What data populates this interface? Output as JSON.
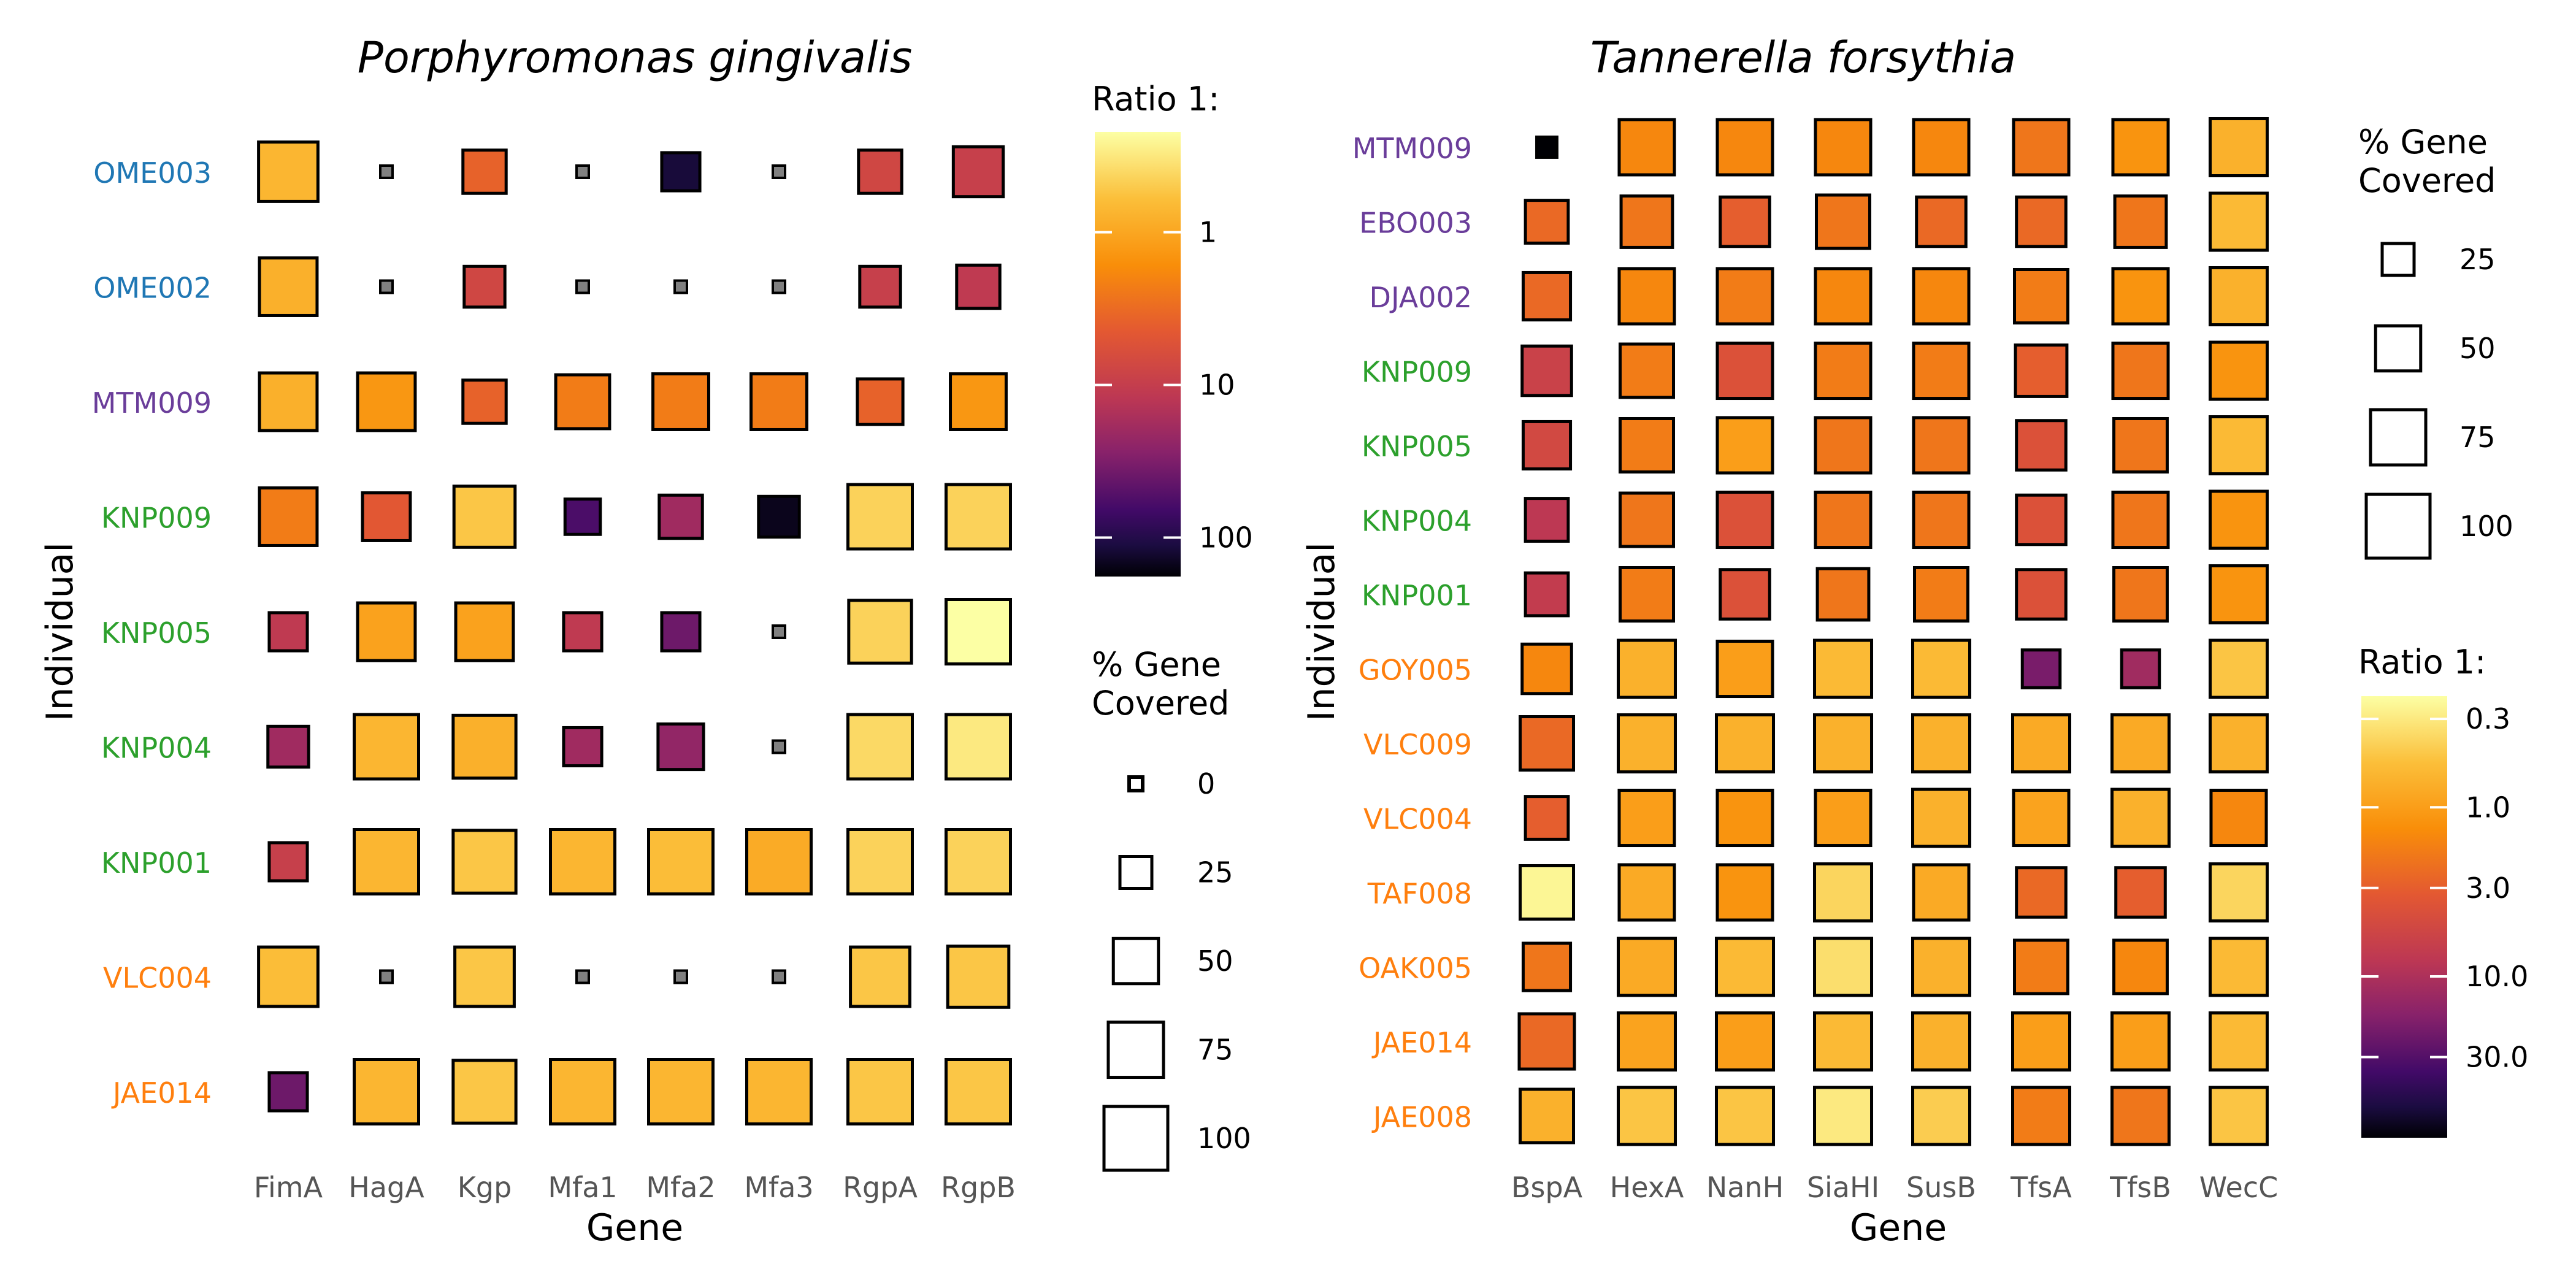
{
  "chart_data": [
    {
      "type": "heatmap",
      "title": "Porphyromonas gingivalis",
      "xlabel": "Gene",
      "ylabel": "Individual",
      "genes": [
        "FimA",
        "HagA",
        "Kgp",
        "Mfa1",
        "Mfa2",
        "Mfa3",
        "RgpA",
        "RgpB"
      ],
      "individuals": [
        "OME003",
        "OME002",
        "MTM009",
        "KNP009",
        "KNP005",
        "KNP004",
        "KNP001",
        "VLC004",
        "JAE014"
      ],
      "individual_colors": [
        "#1f77b4",
        "#1f77b4",
        "#6a3d9a",
        "#2ca02c",
        "#2ca02c",
        "#2ca02c",
        "#2ca02c",
        "#ff7f0e",
        "#ff7f0e"
      ],
      "ratio": [
        [
          0.8,
          null,
          4,
          null,
          120,
          null,
          8,
          10
        ],
        [
          0.9,
          null,
          8,
          null,
          null,
          null,
          10,
          12
        ],
        [
          0.9,
          1.5,
          4,
          2.5,
          2.5,
          2.5,
          4,
          1.5
        ],
        [
          2.5,
          5,
          0.6,
          60,
          20,
          150,
          0.5,
          0.5
        ],
        [
          12,
          1.2,
          1.2,
          12,
          40,
          null,
          0.5,
          0.25
        ],
        [
          20,
          0.8,
          0.9,
          20,
          25,
          null,
          0.45,
          0.35
        ],
        [
          10,
          0.8,
          0.6,
          0.8,
          0.7,
          1.0,
          0.5,
          0.5
        ],
        [
          0.7,
          null,
          0.6,
          null,
          null,
          null,
          0.6,
          0.6
        ],
        [
          40,
          0.8,
          0.6,
          0.8,
          0.8,
          0.8,
          0.6,
          0.6
        ]
      ],
      "coverage": [
        [
          85,
          0,
          45,
          0,
          35,
          0,
          45,
          60
        ],
        [
          80,
          0,
          40,
          0,
          0,
          0,
          40,
          45
        ],
        [
          80,
          80,
          45,
          70,
          75,
          75,
          50,
          75
        ],
        [
          80,
          55,
          90,
          30,
          45,
          40,
          100,
          100
        ],
        [
          35,
          80,
          80,
          35,
          35,
          0,
          95,
          100
        ],
        [
          40,
          100,
          95,
          35,
          50,
          0,
          100,
          100
        ],
        [
          35,
          100,
          95,
          100,
          100,
          100,
          100,
          100
        ],
        [
          85,
          0,
          85,
          0,
          0,
          0,
          85,
          90
        ],
        [
          35,
          100,
          95,
          100,
          100,
          100,
          100,
          100
        ]
      ],
      "color_legend": {
        "title": "Ratio 1:",
        "ticks": [
          "1",
          "10",
          "100"
        ],
        "scale": "log"
      },
      "size_legend": {
        "title": [
          "% Gene",
          "Covered"
        ],
        "ticks": [
          "0",
          "25",
          "50",
          "75",
          "100"
        ]
      }
    },
    {
      "type": "heatmap",
      "title": "Tannerella forsythia",
      "xlabel": "Gene",
      "ylabel": "Individual",
      "genes": [
        "BspA",
        "HexA",
        "NanH",
        "SiaHI",
        "SusB",
        "TfsA",
        "TfsB",
        "WecC"
      ],
      "individuals": [
        "MTM009",
        "EBO003",
        "DJA002",
        "KNP009",
        "KNP005",
        "KNP004",
        "KNP001",
        "GOY005",
        "VLC009",
        "VLC004",
        "TAF008",
        "OAK005",
        "JAE014",
        "JAE008"
      ],
      "individual_colors": [
        "#6a3d9a",
        "#6a3d9a",
        "#6a3d9a",
        "#2ca02c",
        "#2ca02c",
        "#2ca02c",
        "#2ca02c",
        "#ff7f0e",
        "#ff7f0e",
        "#ff7f0e",
        "#ff7f0e",
        "#ff7f0e",
        "#ff7f0e",
        "#ff7f0e"
      ],
      "ratio": [
        [
          100,
          1.5,
          1.5,
          1.5,
          1.5,
          2,
          1.2,
          0.7
        ],
        [
          2.5,
          2,
          3,
          2,
          2.5,
          2.5,
          2,
          0.6
        ],
        [
          2.5,
          1.5,
          1.8,
          1.5,
          1.5,
          1.8,
          1.2,
          0.7
        ],
        [
          6,
          1.8,
          4,
          1.8,
          1.8,
          3,
          2,
          1.2
        ],
        [
          5,
          1.8,
          1.0,
          2,
          2,
          4,
          2,
          0.6
        ],
        [
          8,
          2,
          4,
          2,
          2,
          4,
          2,
          1.2
        ],
        [
          7,
          1.8,
          4,
          2,
          1.8,
          4,
          2,
          1.2
        ],
        [
          1.5,
          0.7,
          1.0,
          0.6,
          0.6,
          20,
          12,
          0.5
        ],
        [
          2.5,
          0.7,
          0.7,
          0.7,
          0.7,
          0.8,
          0.8,
          0.7
        ],
        [
          3,
          1.0,
          1.2,
          1.0,
          0.7,
          0.9,
          0.7,
          1.5
        ],
        [
          0.25,
          0.8,
          1.2,
          0.4,
          0.8,
          2.5,
          3,
          0.4
        ],
        [
          2,
          0.8,
          0.6,
          0.35,
          0.7,
          1.8,
          1.5,
          0.6
        ],
        [
          2.5,
          0.9,
          1.0,
          0.6,
          0.7,
          1.0,
          1.0,
          0.6
        ],
        [
          0.7,
          0.5,
          0.5,
          0.3,
          0.45,
          1.8,
          2,
          0.5
        ]
      ],
      "coverage": [
        [
          10,
          75,
          75,
          75,
          75,
          75,
          75,
          80
        ],
        [
          45,
          65,
          60,
          70,
          60,
          60,
          65,
          80
        ],
        [
          55,
          75,
          75,
          75,
          75,
          70,
          75,
          80
        ],
        [
          60,
          70,
          75,
          75,
          75,
          65,
          75,
          80
        ],
        [
          55,
          70,
          75,
          75,
          75,
          60,
          70,
          80
        ],
        [
          45,
          70,
          75,
          75,
          75,
          60,
          75,
          80
        ],
        [
          45,
          70,
          60,
          65,
          70,
          60,
          70,
          80
        ],
        [
          60,
          80,
          75,
          80,
          80,
          35,
          35,
          80
        ],
        [
          70,
          80,
          80,
          80,
          80,
          80,
          80,
          80
        ],
        [
          45,
          75,
          75,
          75,
          80,
          75,
          80,
          75
        ],
        [
          70,
          75,
          75,
          80,
          75,
          60,
          60,
          80
        ],
        [
          55,
          80,
          80,
          80,
          80,
          70,
          70,
          80
        ],
        [
          75,
          80,
          80,
          80,
          80,
          80,
          80,
          80
        ],
        [
          70,
          80,
          80,
          80,
          80,
          80,
          80,
          80
        ]
      ],
      "color_legend": {
        "title": "Ratio 1:",
        "ticks": [
          "0.3",
          "1.0",
          "3.0",
          "10.0",
          "30.0"
        ],
        "scale": "log"
      },
      "size_legend": {
        "title": [
          "% Gene",
          "Covered"
        ],
        "ticks": [
          "25",
          "50",
          "75",
          "100"
        ]
      }
    }
  ]
}
